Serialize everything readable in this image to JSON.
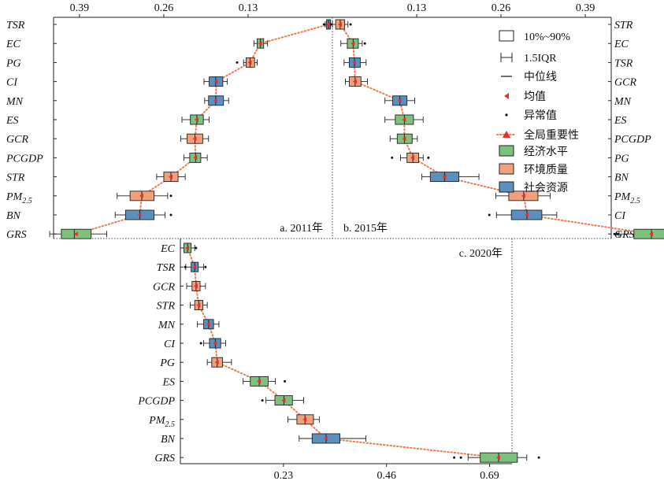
{
  "chart_data": {
    "type": "box",
    "colors": {
      "economic": "#7ec07e",
      "environment": "#f2a07a",
      "social": "#5b8fbd",
      "mean_marker": "#e8302a",
      "importance_line": "#f07a52"
    },
    "legend": {
      "box_range": "10%~90%",
      "whisker": "1.5IQR",
      "median": "中位线",
      "mean": "均值",
      "outlier": "异常值",
      "importance": "全局重要性",
      "economic": "经济水平",
      "environment": "环境质量",
      "social": "社会资源"
    },
    "panels": [
      {
        "label": "a. 2011年",
        "axis_position": "top",
        "direction": "reversed",
        "ticks": [
          "0.39",
          "0.26",
          "0.13"
        ],
        "xlim": [
          0,
          0.43
        ],
        "factors": [
          {
            "name": "TSR",
            "sub": "",
            "group": "social",
            "q10": 0.003,
            "q90": 0.009,
            "median": 0.006,
            "mean": 0.006,
            "wlo": 0.0,
            "whi": 0.011,
            "outliers": [
              0.013
            ]
          },
          {
            "name": "EC",
            "sub": "",
            "group": "economic",
            "q10": 0.106,
            "q90": 0.116,
            "median": 0.111,
            "mean": 0.111,
            "wlo": 0.1,
            "whi": 0.121,
            "outliers": []
          },
          {
            "name": "PG",
            "sub": "",
            "group": "environment",
            "q10": 0.12,
            "q90": 0.133,
            "median": 0.127,
            "mean": 0.127,
            "wlo": 0.116,
            "whi": 0.137,
            "outliers": [
              0.147
            ]
          },
          {
            "name": "CI",
            "sub": "",
            "group": "social",
            "q10": 0.169,
            "q90": 0.19,
            "median": 0.18,
            "mean": 0.179,
            "wlo": 0.162,
            "whi": 0.198,
            "outliers": []
          },
          {
            "name": "MN",
            "sub": "",
            "group": "social",
            "q10": 0.168,
            "q90": 0.191,
            "median": 0.18,
            "mean": 0.18,
            "wlo": 0.16,
            "whi": 0.197,
            "outliers": []
          },
          {
            "name": "ES",
            "sub": "",
            "group": "economic",
            "q10": 0.199,
            "q90": 0.219,
            "median": 0.209,
            "mean": 0.209,
            "wlo": 0.19,
            "whi": 0.232,
            "outliers": []
          },
          {
            "name": "GCR",
            "sub": "",
            "group": "environment",
            "q10": 0.2,
            "q90": 0.224,
            "median": 0.212,
            "mean": 0.212,
            "wlo": 0.191,
            "whi": 0.234,
            "outliers": []
          },
          {
            "name": "PCGDP",
            "sub": "",
            "group": "economic",
            "q10": 0.203,
            "q90": 0.22,
            "median": 0.211,
            "mean": 0.211,
            "wlo": 0.193,
            "whi": 0.229,
            "outliers": []
          },
          {
            "name": "STR",
            "sub": "",
            "group": "environment",
            "q10": 0.238,
            "q90": 0.26,
            "median": 0.249,
            "mean": 0.249,
            "wlo": 0.227,
            "whi": 0.271,
            "outliers": []
          },
          {
            "name": "PM",
            "sub": "2.5",
            "group": "environment",
            "q10": 0.275,
            "q90": 0.312,
            "median": 0.294,
            "mean": 0.294,
            "wlo": 0.254,
            "whi": 0.332,
            "outliers": [
              0.249
            ]
          },
          {
            "name": "BN",
            "sub": "",
            "group": "social",
            "q10": 0.275,
            "q90": 0.319,
            "median": 0.297,
            "mean": 0.297,
            "wlo": 0.258,
            "whi": 0.335,
            "outliers": [
              0.249
            ]
          },
          {
            "name": "GRS",
            "sub": "",
            "group": "economic",
            "q10": 0.372,
            "q90": 0.418,
            "median": 0.398,
            "mean": 0.395,
            "wlo": 0.348,
            "whi": 0.436,
            "outliers": []
          }
        ]
      },
      {
        "label": "b. 2015年",
        "axis_position": "top",
        "direction": "normal",
        "ticks": [
          "0.13",
          "0.26",
          "0.39"
        ],
        "xlim": [
          0,
          0.43
        ],
        "factors": [
          {
            "name": "STR",
            "sub": "",
            "group": "environment",
            "q10": 0.005,
            "q90": 0.019,
            "median": 0.012,
            "mean": 0.012,
            "wlo": 0.0,
            "whi": 0.024,
            "outliers": [
              -0.002,
              0.028
            ]
          },
          {
            "name": "EC",
            "sub": "",
            "group": "economic",
            "q10": 0.023,
            "q90": 0.04,
            "median": 0.032,
            "mean": 0.032,
            "wlo": 0.013,
            "whi": 0.046,
            "outliers": [
              0.05
            ]
          },
          {
            "name": "TSR",
            "sub": "",
            "group": "social",
            "q10": 0.026,
            "q90": 0.043,
            "median": 0.034,
            "mean": 0.034,
            "wlo": 0.018,
            "whi": 0.052,
            "outliers": []
          },
          {
            "name": "GCR",
            "sub": "",
            "group": "environment",
            "q10": 0.026,
            "q90": 0.044,
            "median": 0.035,
            "mean": 0.035,
            "wlo": 0.02,
            "whi": 0.054,
            "outliers": []
          },
          {
            "name": "MN",
            "sub": "",
            "group": "social",
            "q10": 0.093,
            "q90": 0.115,
            "median": 0.104,
            "mean": 0.104,
            "wlo": 0.081,
            "whi": 0.127,
            "outliers": []
          },
          {
            "name": "ES",
            "sub": "",
            "group": "economic",
            "q10": 0.097,
            "q90": 0.125,
            "median": 0.111,
            "mean": 0.111,
            "wlo": 0.081,
            "whi": 0.14,
            "outliers": []
          },
          {
            "name": "PCGDP",
            "sub": "",
            "group": "economic",
            "q10": 0.1,
            "q90": 0.123,
            "median": 0.111,
            "mean": 0.111,
            "wlo": 0.089,
            "whi": 0.131,
            "outliers": []
          },
          {
            "name": "PG",
            "sub": "",
            "group": "environment",
            "q10": 0.115,
            "q90": 0.133,
            "median": 0.124,
            "mean": 0.124,
            "wlo": 0.105,
            "whi": 0.14,
            "outliers": [
              0.092,
              0.148
            ]
          },
          {
            "name": "BN",
            "sub": "",
            "group": "social",
            "q10": 0.151,
            "q90": 0.195,
            "median": 0.173,
            "mean": 0.173,
            "wlo": 0.138,
            "whi": 0.226,
            "outliers": []
          },
          {
            "name": "PM",
            "sub": "2.5",
            "group": "environment",
            "q10": 0.272,
            "q90": 0.317,
            "median": 0.295,
            "mean": 0.295,
            "wlo": 0.252,
            "whi": 0.336,
            "outliers": []
          },
          {
            "name": "CI",
            "sub": "",
            "group": "social",
            "q10": 0.276,
            "q90": 0.323,
            "median": 0.3,
            "mean": 0.3,
            "wlo": 0.253,
            "whi": 0.346,
            "outliers": [
              0.242
            ]
          },
          {
            "name": "GRS",
            "sub": "",
            "group": "economic",
            "q10": 0.465,
            "q90": 0.52,
            "median": 0.492,
            "mean": 0.492,
            "wlo": 0.442,
            "whi": 0.536,
            "outliers": [
              0.435,
              0.439,
              0.44,
              0.582
            ]
          }
        ]
      },
      {
        "label": "c. 2020年",
        "axis_position": "bottom",
        "direction": "normal",
        "ticks": [
          "0.23",
          "0.46",
          "0.69"
        ],
        "xlim": [
          0,
          0.74
        ],
        "factors": [
          {
            "name": "EC",
            "sub": "",
            "group": "economic",
            "q10": 0.008,
            "q90": 0.024,
            "median": 0.016,
            "mean": 0.016,
            "wlo": 0.0,
            "whi": 0.032,
            "outliers": [
              0.035
            ]
          },
          {
            "name": "TSR",
            "sub": "",
            "group": "social",
            "q10": 0.024,
            "q90": 0.04,
            "median": 0.032,
            "mean": 0.032,
            "wlo": 0.012,
            "whi": 0.052,
            "outliers": [
              0.011,
              0.056
            ]
          },
          {
            "name": "GCR",
            "sub": "",
            "group": "environment",
            "q10": 0.026,
            "q90": 0.044,
            "median": 0.035,
            "mean": 0.035,
            "wlo": 0.014,
            "whi": 0.056,
            "outliers": []
          },
          {
            "name": "STR",
            "sub": "",
            "group": "environment",
            "q10": 0.032,
            "q90": 0.05,
            "median": 0.041,
            "mean": 0.041,
            "wlo": 0.022,
            "whi": 0.06,
            "outliers": []
          },
          {
            "name": "MN",
            "sub": "",
            "group": "social",
            "q10": 0.052,
            "q90": 0.074,
            "median": 0.063,
            "mean": 0.063,
            "wlo": 0.038,
            "whi": 0.086,
            "outliers": []
          },
          {
            "name": "CI",
            "sub": "",
            "group": "social",
            "q10": 0.065,
            "q90": 0.09,
            "median": 0.078,
            "mean": 0.078,
            "wlo": 0.052,
            "whi": 0.101,
            "outliers": [
              0.046
            ]
          },
          {
            "name": "PG",
            "sub": "",
            "group": "environment",
            "q10": 0.07,
            "q90": 0.094,
            "median": 0.082,
            "mean": 0.082,
            "wlo": 0.06,
            "whi": 0.114,
            "outliers": []
          },
          {
            "name": "ES",
            "sub": "",
            "group": "economic",
            "q10": 0.156,
            "q90": 0.196,
            "median": 0.176,
            "mean": 0.176,
            "wlo": 0.14,
            "whi": 0.212,
            "outliers": [
              0.233
            ]
          },
          {
            "name": "PCGDP",
            "sub": "",
            "group": "economic",
            "q10": 0.211,
            "q90": 0.25,
            "median": 0.231,
            "mean": 0.231,
            "wlo": 0.191,
            "whi": 0.275,
            "outliers": [
              0.183
            ]
          },
          {
            "name": "PM",
            "sub": "2.5",
            "group": "environment",
            "q10": 0.26,
            "q90": 0.297,
            "median": 0.278,
            "mean": 0.278,
            "wlo": 0.24,
            "whi": 0.31,
            "outliers": []
          },
          {
            "name": "BN",
            "sub": "",
            "group": "social",
            "q10": 0.294,
            "q90": 0.356,
            "median": 0.325,
            "mean": 0.325,
            "wlo": 0.265,
            "whi": 0.414,
            "outliers": []
          },
          {
            "name": "GRS",
            "sub": "",
            "group": "economic",
            "q10": 0.669,
            "q90": 0.752,
            "median": 0.71,
            "mean": 0.71,
            "wlo": 0.642,
            "whi": 0.773,
            "outliers": [
              0.611,
              0.626,
              0.8
            ]
          }
        ]
      }
    ]
  }
}
